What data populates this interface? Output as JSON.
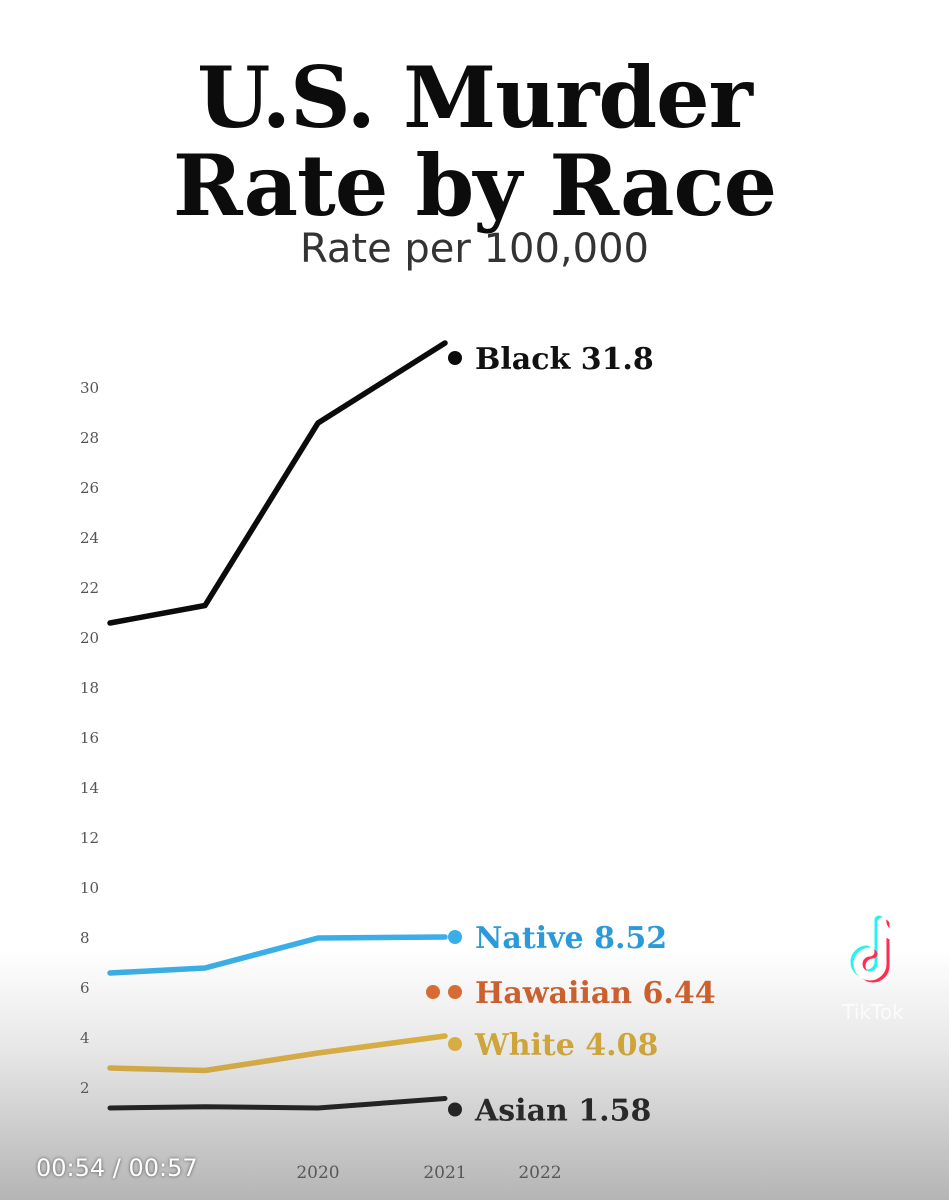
{
  "chart_data": {
    "type": "line",
    "title_line1": "U.S. Murder",
    "title_line2": "Rate by Race",
    "subtitle": "Rate per 100,000",
    "ylim": [
      0,
      32
    ],
    "yticks": [
      2,
      4,
      6,
      8,
      10,
      12,
      14,
      16,
      18,
      20,
      22,
      24,
      26,
      28,
      30
    ],
    "xticks": [
      "2020",
      "2021",
      "2022"
    ],
    "x": [
      2018,
      2019,
      2020,
      2021
    ],
    "series": [
      {
        "name": "Black",
        "label": "Black 31.8",
        "color": "#0b0b0b",
        "labelColor": "#111111",
        "values": [
          20.6,
          21.3,
          28.6,
          31.8
        ]
      },
      {
        "name": "Native",
        "label": "Native 8.52",
        "color": "#3aaee8",
        "labelColor": "#2a9ad8",
        "values": [
          6.6,
          6.8,
          8.0,
          8.52
        ]
      },
      {
        "name": "Hawaiian",
        "label": "Hawaiian 6.44",
        "color": "#e0692f",
        "labelColor": "#d25e28",
        "values": [
          null,
          null,
          null,
          6.44
        ]
      },
      {
        "name": "White",
        "label": "White 4.08",
        "color": "#eab73a",
        "labelColor": "#dfae2f",
        "values": [
          2.8,
          2.7,
          3.4,
          4.08
        ]
      },
      {
        "name": "Asian",
        "label": "Asian 1.58",
        "color": "#0b0b0b",
        "labelColor": "#111111",
        "values": [
          1.2,
          1.25,
          1.2,
          1.58
        ]
      }
    ]
  },
  "video": {
    "timestamp": "00:54 / 00:57",
    "watermark": "TikTok"
  }
}
